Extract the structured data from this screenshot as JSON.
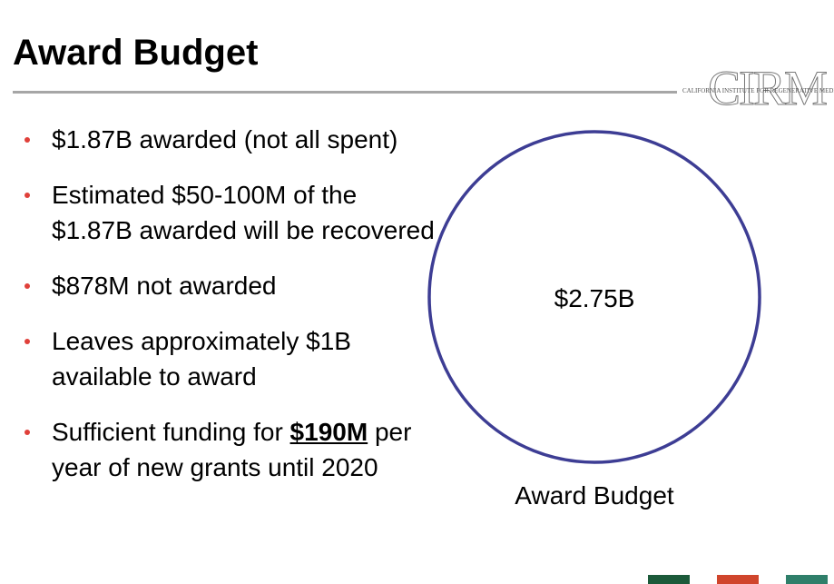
{
  "header": {
    "title": "Award Budget",
    "logo_mark": "CIRM",
    "logo_text": "CALIFORNIA INSTITUTE FOR REGENERATIVE MEDICINE"
  },
  "bullets": [
    "$1.87B awarded (not all spent)",
    "Estimated $50-100M of the $1.87B awarded will be recovered",
    "$878M not awarded",
    "Leaves approximately $1B available to award",
    {
      "before": "Sufficient funding for",
      "emphasis": "$190M",
      "after": "per year of new grants until 2020"
    }
  ],
  "budget_circle": {
    "value_label": "$2.75B",
    "caption": "Award Budget"
  }
}
